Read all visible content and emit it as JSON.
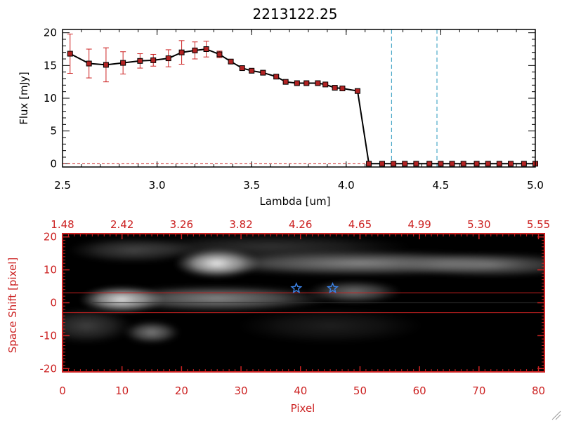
{
  "chart_data": [
    {
      "type": "line",
      "title": "2213122.25",
      "xlabel": "Lambda [um]",
      "ylabel": "Flux [mJy]",
      "xlim": [
        2.5,
        5.0
      ],
      "ylim": [
        -0.5,
        20.5
      ],
      "x_ticks": [
        "2.5",
        "3.0",
        "3.5",
        "4.0",
        "4.5",
        "5.0"
      ],
      "x_tick_values": [
        2.5,
        3.0,
        3.5,
        4.0,
        4.5,
        5.0
      ],
      "y_ticks": [
        "0",
        "5",
        "10",
        "15",
        "20"
      ],
      "y_tick_values": [
        0,
        5,
        10,
        15,
        20
      ],
      "series": [
        {
          "name": "flux",
          "color": "#000000",
          "marker_color": "#b22222",
          "error_color": "#cc2222",
          "x": [
            2.54,
            2.64,
            2.73,
            2.82,
            2.91,
            2.98,
            3.06,
            3.13,
            3.2,
            3.26,
            3.33,
            3.39,
            3.45,
            3.5,
            3.56,
            3.63,
            3.68,
            3.74,
            3.79,
            3.85,
            3.89,
            3.94,
            3.98,
            4.06,
            4.12,
            4.19,
            4.25,
            4.31,
            4.37,
            4.44,
            4.5,
            4.56,
            4.62,
            4.69,
            4.75,
            4.81,
            4.87,
            4.94,
            5.0
          ],
          "values": [
            16.8,
            15.3,
            15.1,
            15.4,
            15.7,
            15.8,
            16.1,
            17.0,
            17.3,
            17.5,
            16.7,
            15.6,
            14.6,
            14.2,
            13.9,
            13.3,
            12.5,
            12.3,
            12.3,
            12.3,
            12.1,
            11.6,
            11.5,
            11.1,
            0,
            0,
            0,
            0,
            0,
            0,
            0,
            0,
            0,
            0,
            0,
            0,
            0,
            0,
            0
          ],
          "errors": [
            3.0,
            2.2,
            2.6,
            1.7,
            1.1,
            0.9,
            1.3,
            1.8,
            1.3,
            1.2,
            0.5,
            0.3,
            0.2,
            0.2,
            0.2,
            0.2,
            0.2,
            0.2,
            0.2,
            0.2,
            0.2,
            0.2,
            0.2,
            0.2,
            0,
            0,
            0,
            0,
            0,
            0,
            0,
            0,
            0,
            0,
            0,
            0,
            0,
            0,
            0
          ]
        }
      ],
      "vlines": [
        4.24,
        4.48
      ],
      "vline_color": "#4aa8c8",
      "hline": {
        "y": 0,
        "color": "#cc2222"
      }
    },
    {
      "type": "heatmap",
      "xlabel": "Pixel",
      "ylabel": "Space Shift [pixel]",
      "xlim": [
        0,
        81
      ],
      "ylim": [
        -21,
        21
      ],
      "x_ticks": [
        "0",
        "10",
        "20",
        "30",
        "40",
        "50",
        "60",
        "70",
        "80"
      ],
      "x_tick_values": [
        0,
        10,
        20,
        30,
        40,
        50,
        60,
        70,
        80
      ],
      "y_ticks": [
        "-20",
        "-10",
        "0",
        "10",
        "20"
      ],
      "y_tick_values": [
        -20,
        -10,
        0,
        10,
        20
      ],
      "top_ticks": [
        "1.48",
        "2.42",
        "3.26",
        "3.82",
        "4.26",
        "4.65",
        "4.99",
        "5.30",
        "5.55"
      ],
      "axis_color": "#cc2222",
      "hlines": [
        3.0,
        -3.0
      ],
      "star_markers": [
        {
          "x": 39.3,
          "y": 4.4
        },
        {
          "x": 45.4,
          "y": 4.4
        }
      ],
      "star_color": "#3a7fe0",
      "blobs": [
        {
          "x": 26,
          "y": 12,
          "sx": 4.5,
          "sy": 2.8,
          "a": 1.0
        },
        {
          "x": 50,
          "y": 12,
          "sx": 18,
          "sy": 2.5,
          "a": 0.55
        },
        {
          "x": 72,
          "y": 11.5,
          "sx": 10,
          "sy": 2.4,
          "a": 0.42
        },
        {
          "x": 10,
          "y": 1,
          "sx": 4.5,
          "sy": 2.6,
          "a": 0.95
        },
        {
          "x": 26,
          "y": 1.3,
          "sx": 12,
          "sy": 2.6,
          "a": 0.55
        },
        {
          "x": 49,
          "y": 3.3,
          "sx": 5,
          "sy": 2.2,
          "a": 0.45
        },
        {
          "x": 15,
          "y": -9,
          "sx": 3,
          "sy": 2.2,
          "a": 0.5
        },
        {
          "x": 4,
          "y": -7,
          "sx": 5,
          "sy": 3.5,
          "a": 0.25
        },
        {
          "x": 12,
          "y": 16,
          "sx": 7,
          "sy": 2.5,
          "a": 0.28
        },
        {
          "x": 35,
          "y": 17,
          "sx": 15,
          "sy": 2.5,
          "a": 0.2
        },
        {
          "x": 45,
          "y": -7,
          "sx": 10,
          "sy": 3.5,
          "a": 0.12
        }
      ]
    }
  ]
}
